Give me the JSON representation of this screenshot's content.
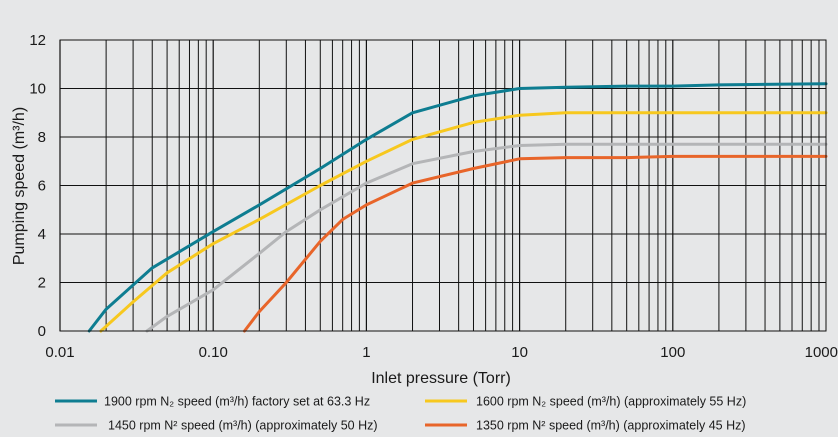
{
  "chart_data": {
    "type": "line",
    "xlabel": "Inlet pressure (Torr)",
    "ylabel": "Pumping speed (m³/h)",
    "xscale": "log",
    "xlim": [
      0.01,
      1000
    ],
    "ylim": [
      0,
      12
    ],
    "x_ticks": [
      "0.01",
      "0.10",
      "1",
      "10",
      "100",
      "1000"
    ],
    "y_ticks": [
      "0",
      "2",
      "4",
      "6",
      "8",
      "10",
      "12"
    ],
    "grid": true,
    "legend_position": "bottom",
    "series": [
      {
        "name": "1900 rpm N₂ speed (m³/h) factory set at 63.3 Hz",
        "color": "#0e7d91",
        "points": [
          [
            0.0155,
            0
          ],
          [
            0.02,
            0.9
          ],
          [
            0.04,
            2.6
          ],
          [
            0.1,
            4.1
          ],
          [
            0.2,
            5.2
          ],
          [
            0.5,
            6.7
          ],
          [
            1,
            7.9
          ],
          [
            2,
            9.0
          ],
          [
            5,
            9.7
          ],
          [
            10,
            10.0
          ],
          [
            20,
            10.05
          ],
          [
            50,
            10.1
          ],
          [
            100,
            10.1
          ],
          [
            200,
            10.15
          ],
          [
            1000,
            10.2
          ]
        ]
      },
      {
        "name": "1600 rpm N₂ speed (m³/h) (approximately 55 Hz)",
        "color": "#f7c81e",
        "points": [
          [
            0.0185,
            0
          ],
          [
            0.03,
            1.2
          ],
          [
            0.05,
            2.4
          ],
          [
            0.1,
            3.6
          ],
          [
            0.2,
            4.6
          ],
          [
            0.5,
            6.0
          ],
          [
            1,
            7.0
          ],
          [
            2,
            7.9
          ],
          [
            5,
            8.6
          ],
          [
            10,
            8.9
          ],
          [
            20,
            9.0
          ],
          [
            50,
            9.0
          ],
          [
            100,
            9.0
          ],
          [
            1000,
            9.0
          ]
        ]
      },
      {
        "name": "1450 rpm N² speed (m³/h) (approximately 50 Hz)",
        "color": "#b4b5b7",
        "points": [
          [
            0.037,
            0
          ],
          [
            0.05,
            0.6
          ],
          [
            0.1,
            1.7
          ],
          [
            0.2,
            3.2
          ],
          [
            0.3,
            4.1
          ],
          [
            0.5,
            5.0
          ],
          [
            1,
            6.1
          ],
          [
            2,
            6.9
          ],
          [
            5,
            7.4
          ],
          [
            10,
            7.65
          ],
          [
            20,
            7.7
          ],
          [
            50,
            7.7
          ],
          [
            100,
            7.7
          ],
          [
            1000,
            7.7
          ]
        ]
      },
      {
        "name": "1350 rpm N² speed (m³/h) (approximately 45 Hz)",
        "color": "#e8652a",
        "points": [
          [
            0.16,
            0
          ],
          [
            0.2,
            0.8
          ],
          [
            0.3,
            2.0
          ],
          [
            0.5,
            3.7
          ],
          [
            0.7,
            4.6
          ],
          [
            1,
            5.2
          ],
          [
            2,
            6.1
          ],
          [
            5,
            6.7
          ],
          [
            10,
            7.1
          ],
          [
            20,
            7.15
          ],
          [
            50,
            7.15
          ],
          [
            100,
            7.2
          ],
          [
            1000,
            7.2
          ]
        ]
      }
    ]
  }
}
